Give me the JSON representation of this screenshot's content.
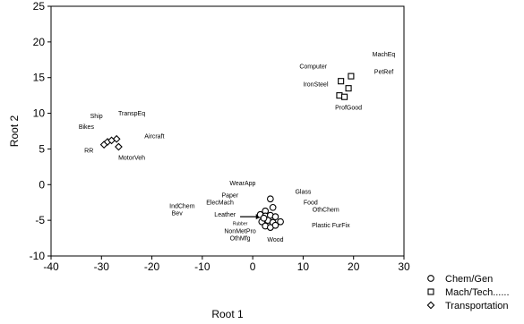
{
  "chart_data": {
    "type": "scatter",
    "title": "",
    "xlabel": "Root 1",
    "ylabel": "Root 2",
    "xlim": [
      -40,
      30
    ],
    "ylim": [
      -10,
      25
    ],
    "xticks": [
      "-40",
      "-30",
      "-20",
      "-10",
      "0",
      "10",
      "20",
      "30"
    ],
    "yticks": [
      "-10",
      "-5",
      "0",
      "5",
      "10",
      "15",
      "20",
      "25"
    ],
    "grid": false,
    "legend_position": "bottom-right outside plot",
    "series": [
      {
        "name": "Chem/Gen",
        "marker": "circle",
        "points": [
          {
            "x": 3.5,
            "y": -2.0
          },
          {
            "x": 4.0,
            "y": -3.2
          },
          {
            "x": 2.5,
            "y": -3.7
          },
          {
            "x": 1.5,
            "y": -4.2
          },
          {
            "x": 2.5,
            "y": -4.4
          },
          {
            "x": 3.5,
            "y": -4.3
          },
          {
            "x": 4.5,
            "y": -4.5
          },
          {
            "x": 1.8,
            "y": -5.2
          },
          {
            "x": 3.0,
            "y": -5.0
          },
          {
            "x": 4.0,
            "y": -5.3
          },
          {
            "x": 5.5,
            "y": -5.2
          },
          {
            "x": 2.5,
            "y": -5.8
          },
          {
            "x": 3.5,
            "y": -6.0
          },
          {
            "x": 4.5,
            "y": -5.7
          },
          {
            "x": 2.2,
            "y": -4.7
          }
        ]
      },
      {
        "name": "Mach/Tech......",
        "marker": "square",
        "points": [
          {
            "x": 17.5,
            "y": 14.5
          },
          {
            "x": 19.5,
            "y": 15.2
          },
          {
            "x": 19.0,
            "y": 13.5
          },
          {
            "x": 17.2,
            "y": 12.5
          },
          {
            "x": 18.2,
            "y": 12.3
          }
        ]
      },
      {
        "name": "Transportation",
        "marker": "diamond",
        "points": [
          {
            "x": -29.5,
            "y": 5.6
          },
          {
            "x": -28.8,
            "y": 6.0
          },
          {
            "x": -28.0,
            "y": 6.2
          },
          {
            "x": -27.0,
            "y": 6.4
          },
          {
            "x": -26.6,
            "y": 5.3
          }
        ]
      }
    ],
    "annotations": [
      {
        "text": "MachEq",
        "x": 26.0,
        "y": 18.0
      },
      {
        "text": "PetRef",
        "x": 26.0,
        "y": 15.5
      },
      {
        "text": "Computer",
        "x": 12.0,
        "y": 16.3
      },
      {
        "text": "IronSteel",
        "x": 12.5,
        "y": 13.8
      },
      {
        "text": "ProfGood",
        "x": 19.0,
        "y": 10.5
      },
      {
        "text": "TranspEq",
        "x": -24.0,
        "y": 9.7
      },
      {
        "text": "Ship",
        "x": -31.0,
        "y": 9.3
      },
      {
        "text": "Bikes",
        "x": -33.0,
        "y": 7.8
      },
      {
        "text": "Aircraft",
        "x": -19.5,
        "y": 6.5
      },
      {
        "text": "RR",
        "x": -32.5,
        "y": 4.5
      },
      {
        "text": "MotorVeh",
        "x": -24.0,
        "y": 3.5
      },
      {
        "text": "WearApp",
        "x": -2.0,
        "y": -0.1
      },
      {
        "text": "Glass",
        "x": 10.0,
        "y": -1.3
      },
      {
        "text": "Paper",
        "x": -4.5,
        "y": -1.8
      },
      {
        "text": "ElecMach",
        "x": -6.5,
        "y": -2.8
      },
      {
        "text": "Food",
        "x": 11.5,
        "y": -2.8
      },
      {
        "text": "IndChem",
        "x": -14.0,
        "y": -3.3
      },
      {
        "text": "OthChem",
        "x": 14.5,
        "y": -3.8
      },
      {
        "text": "Bev",
        "x": -15.0,
        "y": -4.3
      },
      {
        "text": "Leather",
        "x": -5.5,
        "y": -4.5
      },
      {
        "text": "Rubber",
        "x": -2.5,
        "y": -5.7,
        "small": true
      },
      {
        "text": "Plastic FurFix",
        "x": 15.5,
        "y": -6.0
      },
      {
        "text": "NonMetPro",
        "x": -2.5,
        "y": -6.8
      },
      {
        "text": "OthMfg",
        "x": -2.5,
        "y": -7.8
      },
      {
        "text": "Wood",
        "x": 4.5,
        "y": -8.0
      }
    ],
    "arrow": {
      "from": {
        "x": -2.5,
        "y": -4.5
      },
      "to": {
        "x": 1.7,
        "y": -4.5
      }
    }
  }
}
